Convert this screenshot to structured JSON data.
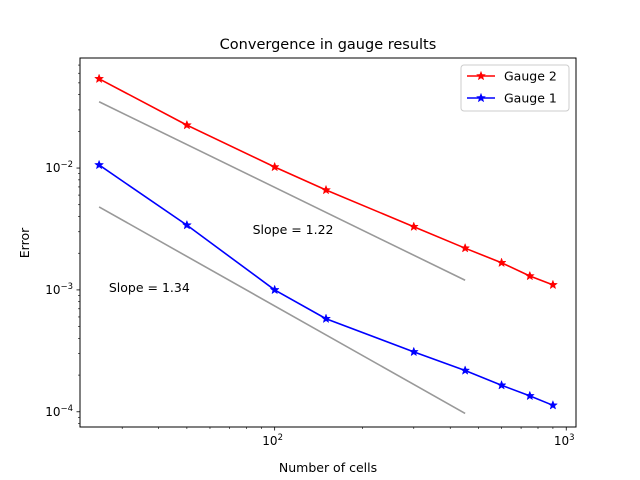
{
  "chart_data": {
    "type": "line",
    "title": "Convergence in gauge results",
    "xlabel": "Number of cells",
    "ylabel": "Error",
    "xscale": "log",
    "yscale": "log",
    "xlim": [
      21.5,
      1080
    ],
    "ylim": [
      7.5e-05,
      0.08
    ],
    "x_ticks": [
      {
        "value": 100,
        "base": "10",
        "exp": "2"
      },
      {
        "value": 1000,
        "base": "10",
        "exp": "3"
      }
    ],
    "y_ticks": [
      {
        "value": 0.0001,
        "base": "10",
        "exp": "−4"
      },
      {
        "value": 0.001,
        "base": "10",
        "exp": "−3"
      },
      {
        "value": 0.01,
        "base": "10",
        "exp": "−2"
      }
    ],
    "legend_position": "top-right",
    "series": [
      {
        "name": "Gauge 2",
        "color": "#ff0000",
        "marker": "star",
        "x": [
          25,
          50,
          100,
          150,
          300,
          450,
          600,
          750,
          900
        ],
        "values": [
          0.054,
          0.0225,
          0.0102,
          0.0066,
          0.0033,
          0.0022,
          0.00167,
          0.0013,
          0.0011
        ]
      },
      {
        "name": "Gauge 1",
        "color": "#0000ff",
        "marker": "star",
        "x": [
          25,
          50,
          100,
          150,
          300,
          450,
          600,
          750,
          900
        ],
        "values": [
          0.0106,
          0.0034,
          0.001,
          0.00058,
          0.00031,
          0.000218,
          0.000165,
          0.000135,
          0.000113
        ]
      }
    ],
    "reference_lines": [
      {
        "name": "slope-1.22",
        "color": "#999999",
        "x": [
          25,
          450
        ],
        "values": [
          0.035,
          0.0012
        ]
      },
      {
        "name": "slope-1.34",
        "color": "#999999",
        "x": [
          25,
          450
        ],
        "values": [
          0.0048,
          9.7e-05
        ]
      }
    ],
    "annotations": [
      {
        "text": "Slope = 1.22",
        "x": 84,
        "y": 0.0031
      },
      {
        "text": "Slope = 1.34",
        "x": 27,
        "y": 0.00104
      }
    ]
  }
}
